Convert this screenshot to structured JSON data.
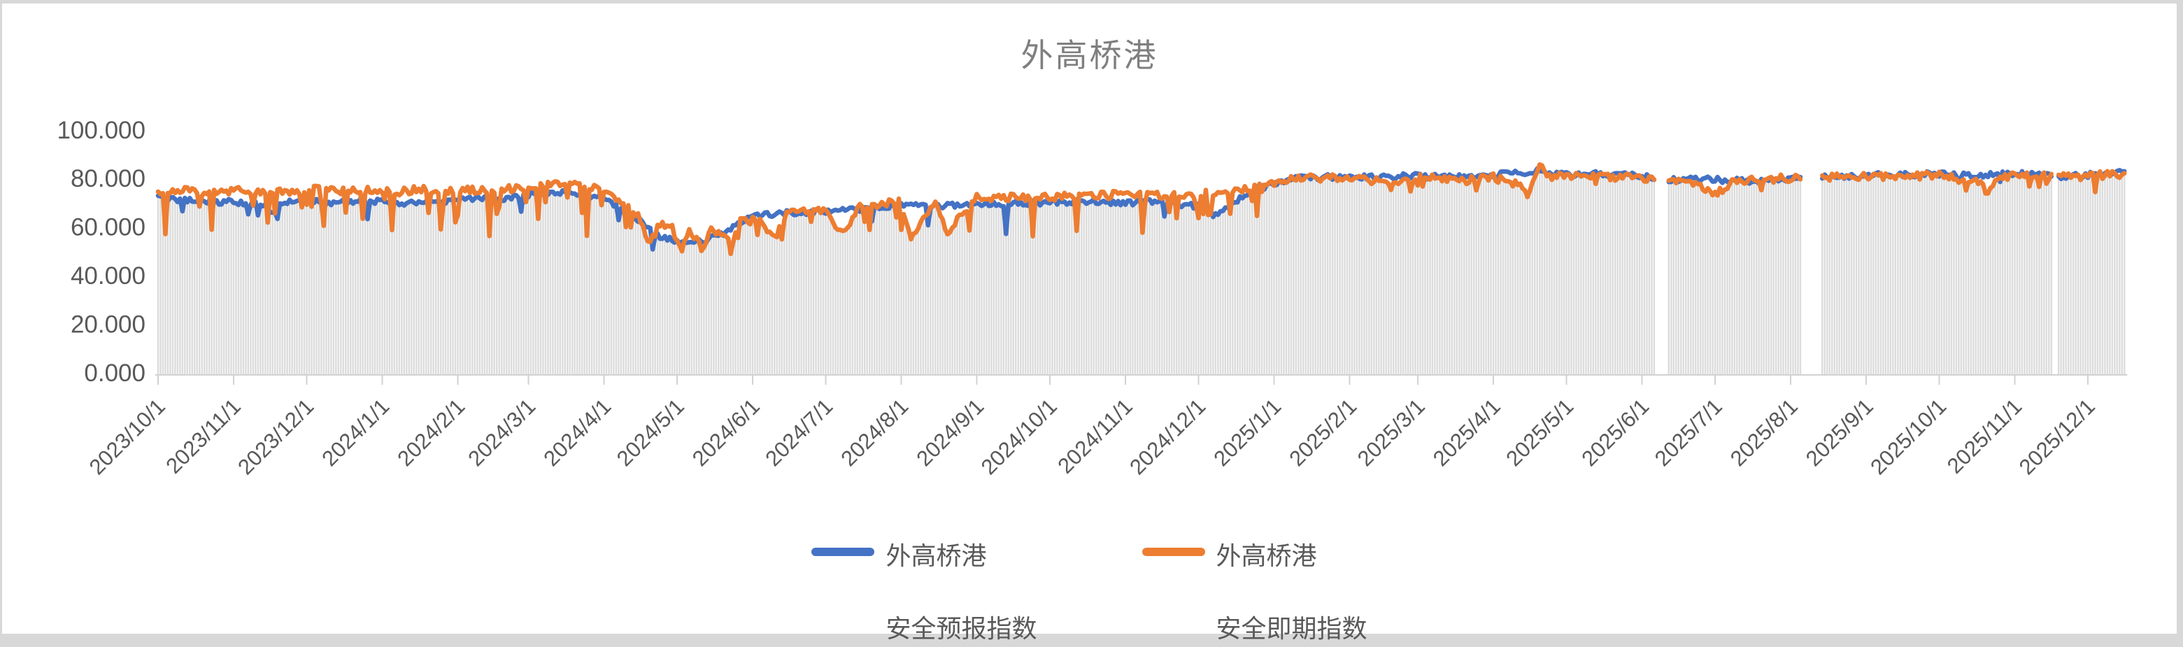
{
  "frame": {
    "background_color": "#d8d8d8",
    "canvas_color": "#ffffff"
  },
  "chart_data": {
    "type": "line",
    "title": "外高桥港",
    "title_color": "#7f7f7f",
    "xlabel": "",
    "ylabel": "",
    "ylim": [
      0,
      100
    ],
    "grid": false,
    "legend_position": "bottom",
    "y_ticks": [
      {
        "value": 100,
        "label": "100.000"
      },
      {
        "value": 80,
        "label": "80.000"
      },
      {
        "value": 60,
        "label": "60.000"
      },
      {
        "value": 40,
        "label": "40.000"
      },
      {
        "value": 20,
        "label": "20.000"
      },
      {
        "value": 0,
        "label": "0.000"
      }
    ],
    "x_start": "2023/10/1",
    "x_end": "2025/12/16",
    "x_tick_labels": [
      "2023/10/1",
      "2023/11/1",
      "2023/12/1",
      "2024/1/1",
      "2024/2/1",
      "2024/3/1",
      "2024/4/1",
      "2024/5/1",
      "2024/6/1",
      "2024/7/1",
      "2024/8/1",
      "2024/9/1",
      "2024/10/1",
      "2024/11/1",
      "2024/12/1",
      "2025/1/1",
      "2025/2/1",
      "2025/3/1",
      "2025/4/1",
      "2025/5/1",
      "2025/6/1",
      "2025/7/1",
      "2025/8/1",
      "2025/9/1",
      "2025/10/1",
      "2025/11/1",
      "2025/12/1"
    ],
    "axis_color": "#d2d2d2",
    "tick_label_color": "#595959",
    "data_gaps": [
      {
        "from": "2025/6/7",
        "to": "2025/6/11"
      },
      {
        "from": "2025/8/6",
        "to": "2025/8/13"
      },
      {
        "from": "2025/11/17",
        "to": "2025/11/18"
      }
    ],
    "background_bars": {
      "description": "daily light-gray column series under the lines, top follows the lower of the two indices",
      "color": "#dcdcdc"
    },
    "series": [
      {
        "name": "外高桥港 安全预报指数",
        "color": "#4472C4",
        "anchors": [
          [
            "2023/10/1",
            72
          ],
          [
            "2023/10/8",
            71.5
          ],
          [
            "2023/10/15",
            71
          ],
          [
            "2023/10/22",
            70.5
          ],
          [
            "2023/11/1",
            70.5
          ],
          [
            "2023/11/6",
            70
          ],
          [
            "2023/11/7",
            65
          ],
          [
            "2023/11/8",
            70
          ],
          [
            "2023/11/15",
            69.5
          ],
          [
            "2023/11/19",
            64.5
          ],
          [
            "2023/11/20",
            70
          ],
          [
            "2023/12/1",
            71
          ],
          [
            "2023/12/10",
            70
          ],
          [
            "2023/12/20",
            70.5
          ],
          [
            "2024/1/1",
            70.5
          ],
          [
            "2024/1/10",
            69.5
          ],
          [
            "2024/1/20",
            70.5
          ],
          [
            "2024/2/1",
            71
          ],
          [
            "2024/2/10",
            72
          ],
          [
            "2024/2/20",
            71.5
          ],
          [
            "2024/3/1",
            73.5
          ],
          [
            "2024/3/10",
            74.5
          ],
          [
            "2024/3/20",
            74
          ],
          [
            "2024/4/1",
            71.5
          ],
          [
            "2024/4/8",
            68
          ],
          [
            "2024/4/15",
            63
          ],
          [
            "2024/4/22",
            57
          ],
          [
            "2024/4/29",
            54.5
          ],
          [
            "2024/5/6",
            53.5
          ],
          [
            "2024/5/13",
            54.5
          ],
          [
            "2024/5/20",
            57.5
          ],
          [
            "2024/5/27",
            62
          ],
          [
            "2024/6/3",
            65
          ],
          [
            "2024/6/10",
            65.5
          ],
          [
            "2024/6/17",
            66
          ],
          [
            "2024/7/1",
            66.5
          ],
          [
            "2024/7/15",
            67.5
          ],
          [
            "2024/8/1",
            69
          ],
          [
            "2024/8/15",
            68.5
          ],
          [
            "2024/9/1",
            70
          ],
          [
            "2024/9/12",
            69.5
          ],
          [
            "2024/9/13",
            57
          ],
          [
            "2024/9/14",
            69.5
          ],
          [
            "2024/10/1",
            70
          ],
          [
            "2024/10/15",
            70.5
          ],
          [
            "2024/11/1",
            70
          ],
          [
            "2024/11/15",
            70.5
          ],
          [
            "2024/12/1",
            68.5
          ],
          [
            "2024/12/8",
            64.5
          ],
          [
            "2024/12/15",
            70
          ],
          [
            "2024/12/22",
            74.5
          ],
          [
            "2025/1/1",
            78
          ],
          [
            "2025/1/10",
            80
          ],
          [
            "2025/1/20",
            80.5
          ],
          [
            "2025/2/1",
            80.5
          ],
          [
            "2025/2/15",
            81
          ],
          [
            "2025/3/1",
            81
          ],
          [
            "2025/3/15",
            80.5
          ],
          [
            "2025/4/1",
            81.5
          ],
          [
            "2025/4/20",
            83
          ],
          [
            "2025/5/1",
            81.5
          ],
          [
            "2025/5/15",
            82
          ],
          [
            "2025/6/1",
            81
          ],
          [
            "2025/6/6",
            80.5
          ],
          [
            "2025/6/12",
            79.5
          ],
          [
            "2025/6/20",
            80
          ],
          [
            "2025/7/1",
            79.5
          ],
          [
            "2025/7/15",
            79
          ],
          [
            "2025/8/5",
            80
          ],
          [
            "2025/8/14",
            80.5
          ],
          [
            "2025/9/1",
            81.5
          ],
          [
            "2025/9/15",
            81.5
          ],
          [
            "2025/10/1",
            82
          ],
          [
            "2025/10/15",
            81.5
          ],
          [
            "2025/11/1",
            82
          ],
          [
            "2025/11/16",
            81
          ],
          [
            "2025/11/19",
            80.5
          ],
          [
            "2025/12/1",
            81.5
          ],
          [
            "2025/12/16",
            82.5
          ]
        ]
      },
      {
        "name": "外高桥港 安全即期指数",
        "color": "#ED7D31",
        "anchors": [
          [
            "2023/10/1",
            75.5
          ],
          [
            "2023/10/3",
            74
          ],
          [
            "2023/10/4",
            58.5
          ],
          [
            "2023/10/5",
            74
          ],
          [
            "2023/10/12",
            75
          ],
          [
            "2023/10/22",
            74
          ],
          [
            "2023/10/23",
            60
          ],
          [
            "2023/10/24",
            74.5
          ],
          [
            "2023/11/1",
            75
          ],
          [
            "2023/11/14",
            74.5
          ],
          [
            "2023/11/15",
            61
          ],
          [
            "2023/11/16",
            74.5
          ],
          [
            "2023/11/25",
            75
          ],
          [
            "2023/12/7",
            75.5
          ],
          [
            "2023/12/8",
            59
          ],
          [
            "2023/12/9",
            75
          ],
          [
            "2023/12/20",
            75
          ],
          [
            "2024/1/4",
            75
          ],
          [
            "2024/1/5",
            60
          ],
          [
            "2024/1/6",
            74.5
          ],
          [
            "2024/1/15",
            75.5
          ],
          [
            "2024/1/24",
            75
          ],
          [
            "2024/1/25",
            58
          ],
          [
            "2024/1/26",
            74.5
          ],
          [
            "2024/2/5",
            75.5
          ],
          [
            "2024/2/13",
            75
          ],
          [
            "2024/2/14",
            57
          ],
          [
            "2024/2/15",
            75
          ],
          [
            "2024/2/25",
            76
          ],
          [
            "2024/3/4",
            77.5
          ],
          [
            "2024/3/5",
            62
          ],
          [
            "2024/3/6",
            78
          ],
          [
            "2024/3/12",
            78.5
          ],
          [
            "2024/3/24",
            78
          ],
          [
            "2024/3/25",
            57
          ],
          [
            "2024/3/26",
            77
          ],
          [
            "2024/4/1",
            74.5
          ],
          [
            "2024/4/8",
            70
          ],
          [
            "2024/4/15",
            65
          ],
          [
            "2024/4/20",
            53
          ],
          [
            "2024/4/23",
            61
          ],
          [
            "2024/4/29",
            59.5
          ],
          [
            "2024/5/3",
            50.5
          ],
          [
            "2024/5/6",
            59
          ],
          [
            "2024/5/12",
            50
          ],
          [
            "2024/5/15",
            60
          ],
          [
            "2024/5/24",
            53
          ],
          [
            "2024/5/27",
            63.5
          ],
          [
            "2024/6/3",
            65
          ],
          [
            "2024/6/10",
            55
          ],
          [
            "2024/6/15",
            66
          ],
          [
            "2024/7/1",
            67
          ],
          [
            "2024/7/8",
            57
          ],
          [
            "2024/7/15",
            68.5
          ],
          [
            "2024/8/1",
            70.5
          ],
          [
            "2024/8/5",
            56
          ],
          [
            "2024/8/15",
            71.5
          ],
          [
            "2024/8/20",
            58
          ],
          [
            "2024/9/1",
            72.5
          ],
          [
            "2024/9/23",
            72
          ],
          [
            "2024/9/24",
            57
          ],
          [
            "2024/9/25",
            72
          ],
          [
            "2024/10/11",
            73
          ],
          [
            "2024/10/12",
            58
          ],
          [
            "2024/10/13",
            72.5
          ],
          [
            "2024/11/1",
            73.5
          ],
          [
            "2024/11/7",
            73
          ],
          [
            "2024/11/8",
            62
          ],
          [
            "2024/11/9",
            73
          ],
          [
            "2024/11/20",
            73
          ],
          [
            "2024/12/4",
            74
          ],
          [
            "2024/12/5",
            65
          ],
          [
            "2024/12/6",
            74
          ],
          [
            "2024/12/15",
            74.5
          ],
          [
            "2024/12/22",
            76
          ],
          [
            "2025/1/1",
            78.5
          ],
          [
            "2025/1/10",
            80
          ],
          [
            "2025/2/1",
            80.5
          ],
          [
            "2025/2/20",
            78
          ],
          [
            "2025/3/1",
            80.5
          ],
          [
            "2025/3/20",
            79
          ],
          [
            "2025/4/1",
            80.5
          ],
          [
            "2025/4/12",
            77
          ],
          [
            "2025/4/15",
            72
          ],
          [
            "2025/4/20",
            86.5
          ],
          [
            "2025/4/24",
            81
          ],
          [
            "2025/5/10",
            81
          ],
          [
            "2025/5/25",
            80.5
          ],
          [
            "2025/6/1",
            80
          ],
          [
            "2025/6/6",
            79.5
          ],
          [
            "2025/6/12",
            79
          ],
          [
            "2025/6/25",
            77
          ],
          [
            "2025/7/1",
            73
          ],
          [
            "2025/7/8",
            78.5
          ],
          [
            "2025/7/20",
            79.5
          ],
          [
            "2025/8/5",
            80.5
          ],
          [
            "2025/8/14",
            80.5
          ],
          [
            "2025/9/1",
            81
          ],
          [
            "2025/9/15",
            80.5
          ],
          [
            "2025/10/1",
            81.5
          ],
          [
            "2025/10/18",
            78
          ],
          [
            "2025/10/21",
            73.5
          ],
          [
            "2025/10/24",
            79.5
          ],
          [
            "2025/11/1",
            81.5
          ],
          [
            "2025/11/16",
            81
          ],
          [
            "2025/11/19",
            80.5
          ],
          [
            "2025/12/1",
            81
          ],
          [
            "2025/12/16",
            82
          ]
        ]
      }
    ],
    "render_hints": {
      "blue_seed": 20231001,
      "orange_seed": 77777,
      "blue_jitter": 1.2,
      "orange_jitter": 1.6,
      "blue_dip_prob": 0.018,
      "orange_dip_prob_pre2025": 0.09,
      "orange_dip_prob_2025": 0.035,
      "value_min": 49,
      "value_max": 87.5
    }
  },
  "legend": {
    "items": [
      {
        "line1": "外高桥港",
        "line2": "安全预报指数",
        "color": "#4472C4"
      },
      {
        "line1": "外高桥港",
        "line2": "安全即期指数",
        "color": "#ED7D31"
      }
    ]
  }
}
